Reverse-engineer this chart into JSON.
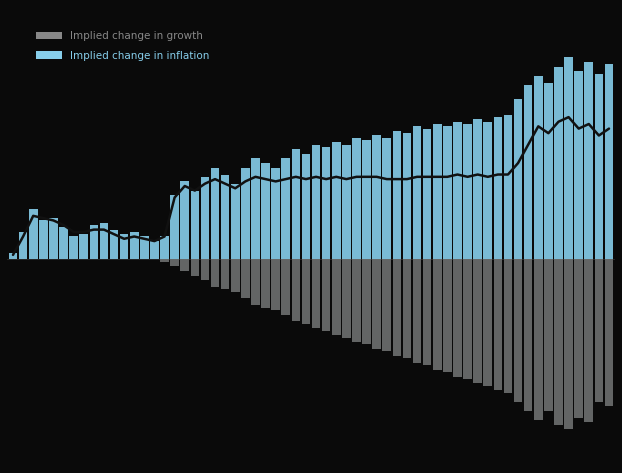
{
  "blue_bars": [
    0.15,
    0.6,
    1.1,
    0.85,
    0.9,
    0.7,
    0.5,
    0.55,
    0.75,
    0.8,
    0.65,
    0.55,
    0.6,
    0.5,
    0.4,
    0.5,
    1.4,
    1.7,
    1.5,
    1.8,
    2.0,
    1.85,
    1.65,
    2.0,
    2.2,
    2.1,
    2.0,
    2.2,
    2.4,
    2.3,
    2.5,
    2.45,
    2.55,
    2.5,
    2.65,
    2.6,
    2.7,
    2.65,
    2.8,
    2.75,
    2.9,
    2.85,
    2.95,
    2.9,
    3.0,
    2.95,
    3.05,
    3.0,
    3.1,
    3.15,
    3.5,
    3.8,
    4.0,
    3.85,
    4.2,
    4.4,
    4.1,
    4.3,
    4.05,
    4.25
  ],
  "gray_bars": [
    0.0,
    0.0,
    0.0,
    0.0,
    0.0,
    0.0,
    0.0,
    0.0,
    0.0,
    0.0,
    0.0,
    0.0,
    0.0,
    0.0,
    0.0,
    -0.05,
    -0.15,
    -0.25,
    -0.35,
    -0.45,
    -0.6,
    -0.65,
    -0.7,
    -0.85,
    -1.0,
    -1.05,
    -1.1,
    -1.2,
    -1.35,
    -1.4,
    -1.5,
    -1.55,
    -1.65,
    -1.7,
    -1.8,
    -1.85,
    -1.95,
    -2.0,
    -2.1,
    -2.15,
    -2.25,
    -2.3,
    -2.4,
    -2.45,
    -2.55,
    -2.6,
    -2.7,
    -2.75,
    -2.85,
    -2.9,
    -3.1,
    -3.3,
    -3.5,
    -3.3,
    -3.6,
    -3.7,
    -3.45,
    -3.55,
    -3.1,
    -3.2
  ],
  "line": [
    0.1,
    0.5,
    0.95,
    0.9,
    0.85,
    0.75,
    0.6,
    0.6,
    0.65,
    0.65,
    0.55,
    0.45,
    0.5,
    0.45,
    0.4,
    0.5,
    1.35,
    1.6,
    1.5,
    1.65,
    1.75,
    1.65,
    1.55,
    1.7,
    1.8,
    1.75,
    1.7,
    1.75,
    1.8,
    1.75,
    1.8,
    1.75,
    1.8,
    1.75,
    1.8,
    1.8,
    1.8,
    1.75,
    1.75,
    1.75,
    1.8,
    1.8,
    1.8,
    1.8,
    1.85,
    1.8,
    1.85,
    1.8,
    1.85,
    1.85,
    2.1,
    2.5,
    2.9,
    2.75,
    3.0,
    3.1,
    2.85,
    2.95,
    2.7,
    2.85
  ],
  "blue_color": "#87CEEB",
  "gray_color": "#6e7070",
  "line_color": "#111111",
  "background_color": "#0a0a0a",
  "legend_growth_label": "Implied change in growth",
  "legend_inflation_label": "Implied change in inflation",
  "legend_growth_color": "#888888",
  "legend_inflation_color": "#87CEEB",
  "ylim_min": -4.5,
  "ylim_max": 5.5
}
